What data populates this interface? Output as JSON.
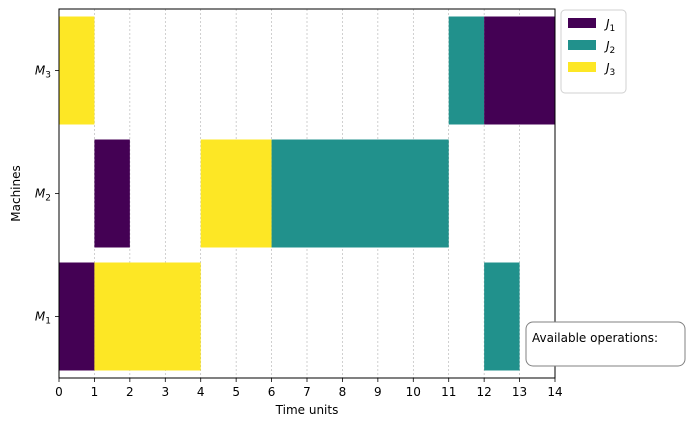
{
  "chart_data": {
    "type": "gantt",
    "xlabel": "Time units",
    "ylabel": "Machines",
    "xlim": [
      0,
      14
    ],
    "x_ticks": [
      "0",
      "1",
      "2",
      "3",
      "4",
      "5",
      "6",
      "7",
      "8",
      "9",
      "10",
      "11",
      "12",
      "13",
      "14"
    ],
    "machines": [
      {
        "id": "M1",
        "label_base": "M",
        "label_sub": "1"
      },
      {
        "id": "M2",
        "label_base": "M",
        "label_sub": "2"
      },
      {
        "id": "M3",
        "label_base": "M",
        "label_sub": "3"
      }
    ],
    "jobs": [
      {
        "id": "J1",
        "label_base": "J",
        "label_sub": "1",
        "color": "#440154"
      },
      {
        "id": "J2",
        "label_base": "J",
        "label_sub": "2",
        "color": "#21918c"
      },
      {
        "id": "J3",
        "label_base": "J",
        "label_sub": "3",
        "color": "#fde725"
      }
    ],
    "tasks": [
      {
        "machine": "M1",
        "job": "J1",
        "start": 0,
        "end": 1
      },
      {
        "machine": "M1",
        "job": "J3",
        "start": 1,
        "end": 4
      },
      {
        "machine": "M1",
        "job": "J2",
        "start": 12,
        "end": 13
      },
      {
        "machine": "M2",
        "job": "J1",
        "start": 1,
        "end": 2
      },
      {
        "machine": "M2",
        "job": "J3",
        "start": 4,
        "end": 6
      },
      {
        "machine": "M2",
        "job": "J2",
        "start": 6,
        "end": 11
      },
      {
        "machine": "M3",
        "job": "J3",
        "start": 0,
        "end": 1
      },
      {
        "machine": "M3",
        "job": "J2",
        "start": 11,
        "end": 12
      },
      {
        "machine": "M3",
        "job": "J1",
        "start": 12,
        "end": 14
      }
    ],
    "grid": "vertical-dashed",
    "legend_position": "top-right-outside",
    "annotation": "Available operations:"
  }
}
